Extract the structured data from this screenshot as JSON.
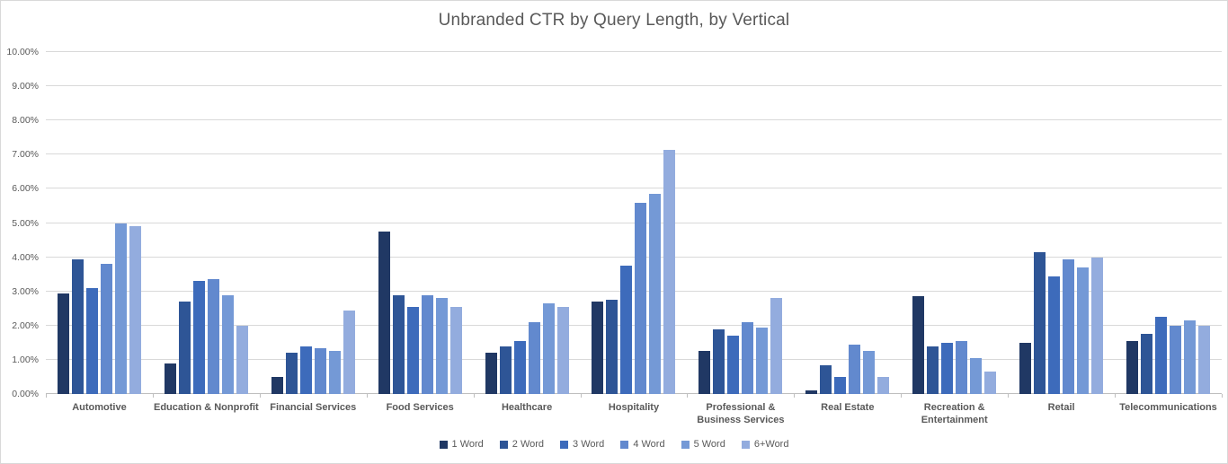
{
  "chart_data": {
    "type": "bar",
    "title": "Unbranded CTR by Query Length, by Vertical",
    "xlabel": "",
    "ylabel": "",
    "y_axis": {
      "min": 0,
      "max": 10,
      "step": 1,
      "tick_labels": [
        "0.00%",
        "1.00%",
        "2.00%",
        "3.00%",
        "4.00%",
        "5.00%",
        "6.00%",
        "7.00%",
        "8.00%",
        "9.00%",
        "10.00%"
      ]
    },
    "grid": true,
    "legend_position": "bottom",
    "categories": [
      "Automotive",
      "Education & Nonprofit",
      "Financial Services",
      "Food Services",
      "Healthcare",
      "Hospitality",
      "Professional &\nBusiness Services",
      "Real Estate",
      "Recreation &\nEntertainment",
      "Retail",
      "Telecommunications"
    ],
    "series": [
      {
        "name": "1 Word",
        "color": "#203864",
        "values": [
          2.95,
          0.9,
          0.5,
          4.75,
          1.2,
          2.7,
          1.25,
          0.1,
          2.85,
          1.5,
          1.55
        ]
      },
      {
        "name": "2 Word",
        "color": "#2e5596",
        "values": [
          3.95,
          2.7,
          1.2,
          2.9,
          1.4,
          2.75,
          1.9,
          0.85,
          1.4,
          4.15,
          1.75
        ]
      },
      {
        "name": "3 Word",
        "color": "#3d6bbb",
        "values": [
          3.1,
          3.3,
          1.4,
          2.55,
          1.55,
          3.75,
          1.7,
          0.5,
          1.5,
          3.45,
          2.25
        ]
      },
      {
        "name": "4 Word",
        "color": "#6289ce",
        "values": [
          3.8,
          3.35,
          1.35,
          2.9,
          2.1,
          5.6,
          2.1,
          1.45,
          1.55,
          3.95,
          2.0
        ]
      },
      {
        "name": "5 Word",
        "color": "#7499d6",
        "values": [
          5.0,
          2.9,
          1.25,
          2.8,
          2.65,
          5.85,
          1.95,
          1.25,
          1.05,
          3.7,
          2.15
        ]
      },
      {
        "name": "6+Word",
        "color": "#93acde",
        "values": [
          4.9,
          2.0,
          2.45,
          2.55,
          2.55,
          7.15,
          2.8,
          0.5,
          0.65,
          4.0,
          2.0
        ]
      }
    ]
  }
}
